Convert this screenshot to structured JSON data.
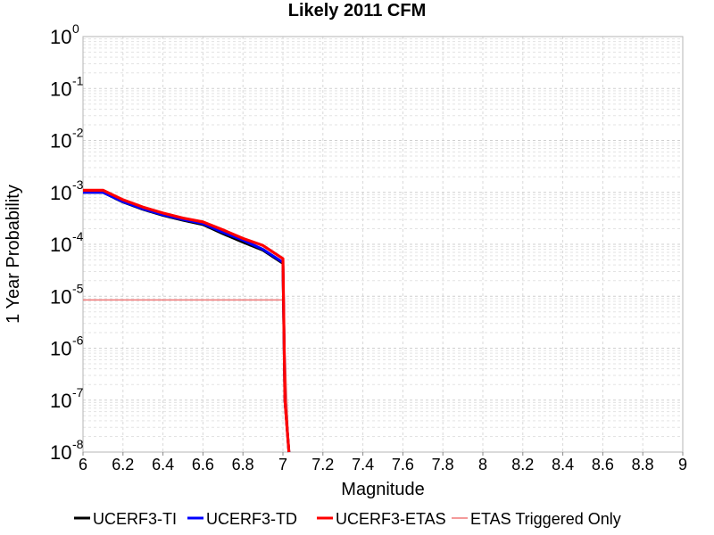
{
  "chart_data": {
    "type": "line",
    "title": "Likely 2011 CFM",
    "xlabel": "Magnitude",
    "ylabel": "1 Year Probability",
    "xlim": [
      6,
      9
    ],
    "ylim": [
      1e-08,
      1
    ],
    "yscale": "log",
    "grid": true,
    "legend_position": "bottom",
    "x_ticks": [
      "6",
      "6.2",
      "6.4",
      "6.6",
      "6.8",
      "7",
      "7.2",
      "7.4",
      "7.6",
      "7.8",
      "8",
      "8.2",
      "8.4",
      "8.6",
      "8.8",
      "9"
    ],
    "y_ticks": [
      {
        "value": 1e-08,
        "base": "10",
        "exp": "-8"
      },
      {
        "value": 1e-07,
        "base": "10",
        "exp": "-7"
      },
      {
        "value": 1e-06,
        "base": "10",
        "exp": "-6"
      },
      {
        "value": 1e-05,
        "base": "10",
        "exp": "-5"
      },
      {
        "value": 0.0001,
        "base": "10",
        "exp": "-4"
      },
      {
        "value": 0.001,
        "base": "10",
        "exp": "-3"
      },
      {
        "value": 0.01,
        "base": "10",
        "exp": "-2"
      },
      {
        "value": 0.1,
        "base": "10",
        "exp": "-1"
      },
      {
        "value": 1,
        "base": "10",
        "exp": "0"
      }
    ],
    "series": [
      {
        "name": "UCERF3-TI",
        "color": "#000000",
        "x": [
          6.0,
          6.1,
          6.2,
          6.3,
          6.4,
          6.5,
          6.6,
          6.7,
          6.8,
          6.9,
          7.0,
          7.01,
          7.03
        ],
        "y": [
          0.001,
          0.001,
          0.00065,
          0.00047,
          0.00036,
          0.00029,
          0.00024,
          0.00016,
          0.00011,
          7.7e-05,
          4.3e-05,
          1e-07,
          1e-08
        ]
      },
      {
        "name": "UCERF3-TD",
        "color": "#0000ff",
        "x": [
          6.0,
          6.1,
          6.2,
          6.3,
          6.4,
          6.5,
          6.6,
          6.7,
          6.8,
          6.9,
          7.0,
          7.01,
          7.03
        ],
        "y": [
          0.001,
          0.001,
          0.00066,
          0.00048,
          0.00037,
          0.0003,
          0.00025,
          0.00017,
          0.00012,
          8e-05,
          4.5e-05,
          1e-07,
          1e-08
        ]
      },
      {
        "name": "UCERF3-ETAS",
        "color": "#ff0000",
        "x": [
          6.0,
          6.1,
          6.2,
          6.3,
          6.4,
          6.5,
          6.6,
          6.7,
          6.8,
          6.9,
          7.0,
          7.01,
          7.03
        ],
        "y": [
          0.0011,
          0.0011,
          0.00072,
          0.00052,
          0.0004,
          0.00032,
          0.00027,
          0.00019,
          0.00013,
          9.5e-05,
          5.3e-05,
          1e-07,
          1e-08
        ]
      },
      {
        "name": "ETAS Triggered Only",
        "color": "#f07878",
        "x": [
          6.0,
          7.0,
          7.03
        ],
        "y": [
          8.5e-06,
          8.5e-06,
          1e-08
        ]
      }
    ]
  }
}
